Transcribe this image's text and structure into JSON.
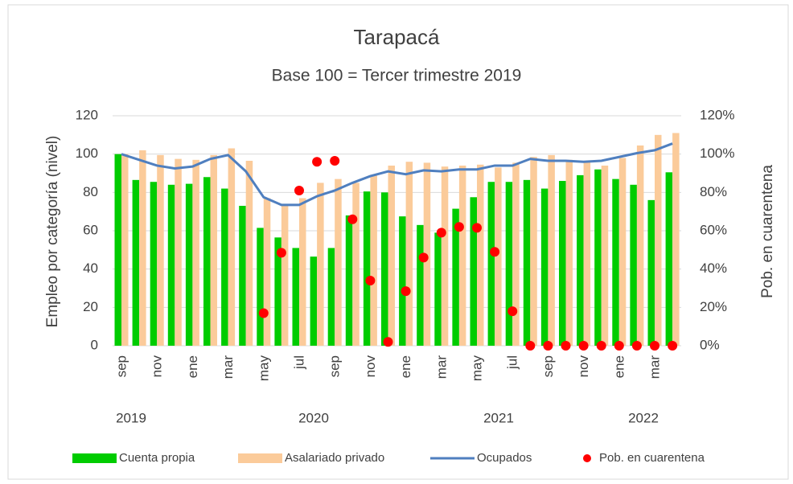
{
  "chart_data": {
    "type": "bar-line",
    "title": "Tarapacá",
    "subtitle": "Base 100 = Tercer trimestre 2019",
    "y_label": "Empleo por categoría (nivel)",
    "y2_label": "Pob. en cuarentena",
    "categories": [
      "sep",
      null,
      "nov",
      null,
      "ene",
      null,
      "mar",
      null,
      "may",
      null,
      "jul",
      null,
      "sep",
      null,
      "nov",
      null,
      "ene",
      null,
      "mar",
      null,
      "may",
      null,
      "jul",
      null,
      "sep",
      null,
      "nov",
      null,
      "ene",
      null,
      "mar",
      null
    ],
    "years": [
      "2019",
      "2020",
      "2021",
      "2022"
    ],
    "ylim": [
      0,
      120
    ],
    "yticks": [
      0,
      20,
      40,
      60,
      80,
      100,
      120
    ],
    "y2lim": [
      0,
      120
    ],
    "y2ticks": [
      {
        "value": 0,
        "label": "0%"
      },
      {
        "value": 20,
        "label": "20%"
      },
      {
        "value": 40,
        "label": "40%"
      },
      {
        "value": 60,
        "label": "60%"
      },
      {
        "value": 80,
        "label": "80%"
      },
      {
        "value": 100,
        "label": "100%"
      },
      {
        "value": 120,
        "label": "120%"
      }
    ],
    "grid": true,
    "legend": "bottom",
    "series": [
      {
        "name": "Cuenta propia",
        "type": "bar",
        "color": "#00cc00",
        "values": [
          100,
          86.5,
          85.5,
          84,
          84.5,
          88,
          82,
          73,
          61.5,
          56.5,
          51,
          46.5,
          51,
          68,
          80.5,
          80,
          67.5,
          63,
          59,
          71.5,
          77.5,
          85.5,
          85.5,
          86.5,
          82,
          86,
          89,
          92,
          87,
          84,
          76,
          90.5
        ]
      },
      {
        "name": "Asalariado privado",
        "type": "bar",
        "color": "#fbcb9a",
        "values": [
          100,
          102,
          99.5,
          97.5,
          97,
          99.5,
          103,
          96.5,
          77,
          73,
          77,
          85,
          87,
          85,
          89,
          94,
          96,
          95.5,
          93.5,
          94,
          94.5,
          93,
          95.5,
          98.5,
          99.5,
          97,
          96.5,
          94,
          98,
          104.5,
          110,
          111
        ]
      },
      {
        "name": "Ocupados",
        "type": "line",
        "color": "#4f7fbf",
        "values": [
          100,
          97,
          94,
          92.5,
          93.5,
          97.5,
          99.5,
          91,
          77.5,
          73.5,
          73.5,
          78,
          81,
          85,
          88.5,
          91,
          89.5,
          91.5,
          91,
          92,
          92,
          94,
          94,
          97.5,
          96.5,
          96.5,
          96,
          96.5,
          98.5,
          100.5,
          102,
          105.5
        ]
      },
      {
        "name": "Pob. en cuarentena",
        "type": "scatter",
        "axis": "y2",
        "color": "#ff0000",
        "values": [
          null,
          null,
          null,
          null,
          null,
          null,
          null,
          null,
          17,
          48.5,
          81,
          96,
          96.5,
          66,
          34,
          2,
          28.5,
          46,
          59,
          62,
          61.5,
          49,
          18,
          0,
          0,
          0,
          0,
          0,
          0,
          0,
          0,
          0
        ]
      }
    ]
  }
}
